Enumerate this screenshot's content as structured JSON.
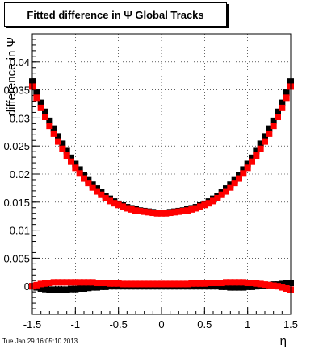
{
  "title": "Fitted difference in Ψ   Global Tracks",
  "timestamp": "Tue Jan 29 16:05:10 2013",
  "chart_data": {
    "type": "scatter",
    "title": "Fitted difference in Ψ   Global Tracks",
    "xlabel": "η",
    "ylabel": "difference in Ψ",
    "xlim": [
      -1.5,
      1.5
    ],
    "ylim": [
      -0.005,
      0.045
    ],
    "grid": true,
    "x_ticks": [
      -1.5,
      -1,
      -0.5,
      0,
      0.5,
      1,
      1.5
    ],
    "x_tick_labels": [
      "-1.5",
      "-1",
      "-0.5",
      "0",
      "0.5",
      "1",
      "1.5"
    ],
    "y_ticks": [
      0,
      0.005,
      0.01,
      0.015,
      0.02,
      0.025,
      0.03,
      0.035,
      0.04
    ],
    "y_tick_labels": [
      "0",
      "0.005",
      "0.01",
      "0.015",
      "0.02",
      "0.025",
      "0.03",
      "0.035",
      "0.04"
    ],
    "x": [
      -1.5,
      -1.45,
      -1.4,
      -1.35,
      -1.3,
      -1.25,
      -1.2,
      -1.15,
      -1.1,
      -1.05,
      -1.0,
      -0.95,
      -0.9,
      -0.85,
      -0.8,
      -0.75,
      -0.7,
      -0.65,
      -0.6,
      -0.55,
      -0.5,
      -0.45,
      -0.4,
      -0.35,
      -0.3,
      -0.25,
      -0.2,
      -0.15,
      -0.1,
      -0.05,
      0.0,
      0.05,
      0.1,
      0.15,
      0.2,
      0.25,
      0.3,
      0.35,
      0.4,
      0.45,
      0.5,
      0.55,
      0.6,
      0.65,
      0.7,
      0.75,
      0.8,
      0.85,
      0.9,
      0.95,
      1.0,
      1.05,
      1.1,
      1.15,
      1.2,
      1.25,
      1.3,
      1.35,
      1.4,
      1.45,
      1.5
    ],
    "series": [
      {
        "color": "#000000",
        "values": [
          0.0365,
          0.0345,
          0.0327,
          0.0311,
          0.0295,
          0.0281,
          0.0267,
          0.0254,
          0.0241,
          0.0229,
          0.0218,
          0.0208,
          0.0198,
          0.0189,
          0.0181,
          0.0174,
          0.0167,
          0.0161,
          0.0156,
          0.0151,
          0.0147,
          0.0144,
          0.0141,
          0.0139,
          0.0137,
          0.0135,
          0.0134,
          0.0133,
          0.0132,
          0.0131,
          0.0131,
          0.0131,
          0.0132,
          0.0133,
          0.0134,
          0.0135,
          0.0137,
          0.0139,
          0.0141,
          0.0144,
          0.0147,
          0.0151,
          0.0156,
          0.0161,
          0.0167,
          0.0174,
          0.0181,
          0.0189,
          0.0198,
          0.0208,
          0.0218,
          0.0229,
          0.0241,
          0.0254,
          0.0267,
          0.0281,
          0.0295,
          0.0311,
          0.0327,
          0.0345,
          0.0365
        ]
      },
      {
        "color": "#ff0000",
        "values": [
          0.0356,
          0.0336,
          0.0318,
          0.0302,
          0.0286,
          0.0272,
          0.0258,
          0.0245,
          0.0233,
          0.0222,
          0.0211,
          0.0201,
          0.0192,
          0.0184,
          0.0176,
          0.0169,
          0.0163,
          0.0157,
          0.0152,
          0.0148,
          0.0145,
          0.0142,
          0.0139,
          0.0137,
          0.0135,
          0.0134,
          0.0133,
          0.0132,
          0.0131,
          0.013,
          0.013,
          0.013,
          0.0131,
          0.0132,
          0.0133,
          0.0134,
          0.0135,
          0.0137,
          0.0139,
          0.0142,
          0.0145,
          0.0148,
          0.0152,
          0.0157,
          0.0163,
          0.0169,
          0.0176,
          0.0184,
          0.0192,
          0.0201,
          0.0211,
          0.0222,
          0.0233,
          0.0245,
          0.0258,
          0.0272,
          0.0286,
          0.0302,
          0.0318,
          0.0336,
          0.0356
        ]
      },
      {
        "color": "#000000",
        "values": [
          0.0,
          -0.0002,
          -0.0004,
          -0.0005,
          -0.0006,
          -0.0006,
          -0.0006,
          -0.0006,
          -0.0006,
          -0.0005,
          -0.0005,
          -0.0004,
          -0.0004,
          -0.0003,
          -0.0002,
          -0.0002,
          -0.0001,
          -0.0001,
          0.0,
          0.0,
          0.0,
          0.0,
          0.0,
          0.0,
          0.0,
          0.0,
          0.0,
          0.0,
          0.0,
          0.0,
          0.0,
          0.0,
          0.0,
          0.0,
          0.0,
          0.0,
          0.0,
          0.0,
          0.0,
          0.0,
          0.0,
          0.0,
          0.0,
          0.0,
          -0.0001,
          -0.0001,
          -0.0002,
          -0.0002,
          -0.0002,
          -0.0002,
          -0.0001,
          -0.0001,
          0.0,
          0.0001,
          0.0001,
          0.0002,
          0.0003,
          0.0003,
          0.0004,
          0.0005,
          0.0006
        ]
      },
      {
        "color": "#ff0000",
        "values": [
          0.0,
          0.0002,
          0.0004,
          0.0005,
          0.0006,
          0.0007,
          0.0007,
          0.0007,
          0.0007,
          0.0007,
          0.0007,
          0.0007,
          0.0007,
          0.0007,
          0.0007,
          0.0006,
          0.0006,
          0.0006,
          0.0005,
          0.0005,
          0.0005,
          0.0004,
          0.0004,
          0.0004,
          0.0004,
          0.0004,
          0.0004,
          0.0004,
          0.0004,
          0.0004,
          0.0004,
          0.0004,
          0.0004,
          0.0004,
          0.0004,
          0.0004,
          0.0004,
          0.0005,
          0.0005,
          0.0005,
          0.0005,
          0.0006,
          0.0006,
          0.0006,
          0.0006,
          0.0007,
          0.0007,
          0.0007,
          0.0007,
          0.0007,
          0.0006,
          0.0006,
          0.0005,
          0.0004,
          0.0003,
          0.0002,
          0.0001,
          0.0,
          -0.0002,
          -0.0004,
          -0.0006
        ]
      }
    ]
  }
}
